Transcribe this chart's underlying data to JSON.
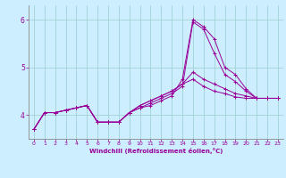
{
  "xlabel": "Windchill (Refroidissement éolien,°C)",
  "bg_color": "#cceeff",
  "line_color": "#990099",
  "grid_color": "#99cccc",
  "xlim": [
    -0.5,
    23.5
  ],
  "ylim": [
    3.5,
    6.3
  ],
  "yticks": [
    4,
    5,
    6
  ],
  "xticks": [
    0,
    1,
    2,
    3,
    4,
    5,
    6,
    7,
    8,
    9,
    10,
    11,
    12,
    13,
    14,
    15,
    16,
    17,
    18,
    19,
    20,
    21,
    22,
    23
  ],
  "x": [
    0,
    1,
    2,
    3,
    4,
    5,
    6,
    7,
    8,
    9,
    10,
    11,
    12,
    13,
    14,
    15,
    16,
    17,
    18,
    19,
    20,
    21,
    22,
    23
  ],
  "series": [
    [
      3.7,
      4.05,
      4.05,
      4.1,
      4.15,
      4.2,
      3.85,
      3.85,
      3.85,
      4.05,
      4.15,
      4.2,
      4.3,
      4.4,
      4.75,
      6.0,
      5.85,
      5.6,
      5.0,
      4.85,
      4.55,
      4.35,
      4.35,
      4.35
    ],
    [
      3.7,
      4.05,
      4.05,
      4.1,
      4.15,
      4.2,
      3.85,
      3.85,
      3.85,
      4.05,
      4.15,
      4.25,
      4.35,
      4.45,
      4.6,
      5.95,
      5.8,
      5.3,
      4.85,
      4.7,
      4.5,
      4.35,
      4.35,
      4.35
    ],
    [
      3.7,
      4.05,
      4.05,
      4.1,
      4.15,
      4.2,
      3.85,
      3.85,
      3.85,
      4.05,
      4.2,
      4.3,
      4.4,
      4.5,
      4.65,
      4.9,
      4.75,
      4.65,
      4.55,
      4.45,
      4.4,
      4.35,
      4.35,
      4.35
    ],
    [
      3.7,
      4.05,
      4.05,
      4.1,
      4.15,
      4.2,
      3.85,
      3.85,
      3.85,
      4.05,
      4.2,
      4.3,
      4.4,
      4.5,
      4.65,
      4.75,
      4.6,
      4.5,
      4.45,
      4.38,
      4.35,
      4.35,
      4.35,
      4.35
    ]
  ]
}
